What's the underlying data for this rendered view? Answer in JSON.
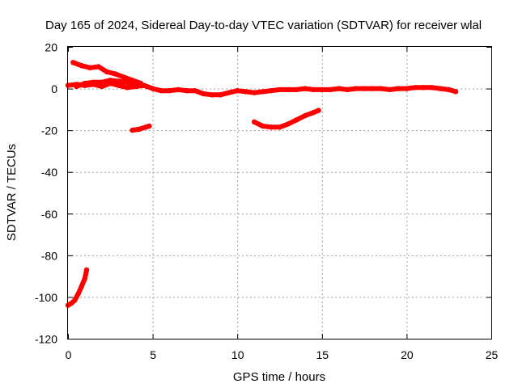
{
  "chart_data": {
    "type": "line",
    "title": "Day 165 of 2024, Sidereal Day-to-day VTEC variation (SDTVAR) for receiver wlal",
    "xlabel": "GPS time / hours",
    "ylabel": "SDTVAR / TECUs",
    "xlim": [
      0,
      25
    ],
    "ylim": [
      -120,
      20
    ],
    "xticks": [
      0,
      5,
      10,
      15,
      20,
      25
    ],
    "yticks": [
      20,
      0,
      -20,
      -40,
      -60,
      -80,
      -100,
      -120
    ],
    "grid": true,
    "color": "#ff0000",
    "series": [
      {
        "name": "main-trace",
        "x": [
          0,
          0.5,
          1.0,
          1.5,
          2.0,
          2.5,
          3.0,
          3.5,
          4.0,
          4.5,
          5.0,
          5.5,
          6.0,
          6.5,
          7.0,
          7.5,
          8.0,
          8.5,
          9.0,
          9.5,
          10.0,
          10.5,
          11.0,
          11.5,
          12.0,
          12.5,
          13.0,
          13.5,
          14.0,
          14.5,
          15.0,
          15.5,
          16.0,
          16.5,
          17.0,
          17.5,
          18.0,
          18.5,
          19.0,
          19.5,
          20.0,
          20.5,
          21.0,
          21.5,
          22.0,
          22.5,
          22.9
        ],
        "y": [
          1.5,
          2,
          1.5,
          2,
          1,
          2.5,
          1.5,
          0.5,
          1,
          1.5,
          0,
          -1,
          -1,
          -0.5,
          -1,
          -1,
          -2.5,
          -3,
          -3,
          -2,
          -1,
          -1.5,
          -2,
          -1.5,
          -1,
          -0.5,
          -0.5,
          -0.5,
          0,
          -0.5,
          -0.5,
          -0.5,
          0,
          -0.5,
          0,
          0,
          0,
          0,
          -0.5,
          0,
          0,
          0.5,
          0.5,
          0.5,
          0,
          -0.5,
          -1.5
        ]
      },
      {
        "name": "upper-trace",
        "x": [
          0.3,
          0.8,
          1.3,
          1.8,
          2.3,
          2.8,
          3.3,
          3.8,
          4.3
        ],
        "y": [
          12.5,
          11,
          10,
          10.5,
          8,
          7,
          5.5,
          4,
          2.5
        ]
      },
      {
        "name": "mid-trace",
        "x": [
          0.5,
          1.0,
          1.5,
          2.0,
          2.5,
          3.0,
          3.5,
          4.0
        ],
        "y": [
          1,
          2.5,
          3,
          3,
          4,
          3.5,
          3,
          2
        ]
      },
      {
        "name": "short-arc-4h",
        "x": [
          3.8,
          4.2,
          4.6,
          4.8
        ],
        "y": [
          -20,
          -19.5,
          -18.5,
          -18
        ]
      },
      {
        "name": "arc-11-15h",
        "x": [
          11.0,
          11.5,
          12.0,
          12.5,
          13.0,
          13.5,
          14.0,
          14.5,
          14.8
        ],
        "y": [
          -16,
          -18,
          -18.5,
          -18.5,
          -17,
          -15,
          -13,
          -11.5,
          -10.5
        ]
      },
      {
        "name": "drop-arc-0-1h",
        "x": [
          0,
          0.2,
          0.4,
          0.6,
          0.8,
          1.0,
          1.1
        ],
        "y": [
          -104,
          -103,
          -101.5,
          -98.5,
          -95,
          -91,
          -87
        ]
      }
    ]
  }
}
